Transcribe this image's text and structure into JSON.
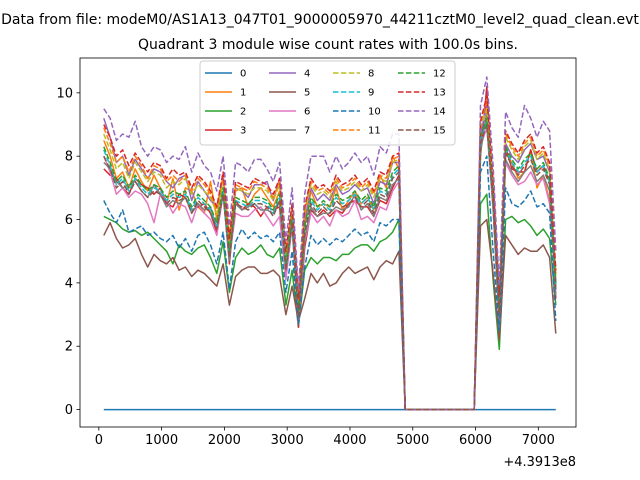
{
  "figure": {
    "suptitle": "Data from file: modeM0/AS1A13_047T01_9000005970_44211cztM0_level2_quad_clean.evt"
  },
  "chart_data": {
    "type": "line",
    "title": "Quadrant 3 module wise count rates with 100.0s bins.",
    "xlabel": "",
    "ylabel": "",
    "x_offset_label": "+4.3913e8",
    "xlim": [
      -300,
      7600
    ],
    "ylim": [
      -0.55,
      11.1
    ],
    "xticks": [
      0,
      1000,
      2000,
      3000,
      4000,
      5000,
      6000,
      7000
    ],
    "yticks": [
      0,
      2,
      4,
      6,
      8,
      10
    ],
    "grid": false,
    "legend_placement": "top-center",
    "legend_columns": 4,
    "x": [
      79,
      179,
      279,
      379,
      479,
      579,
      679,
      779,
      879,
      979,
      1079,
      1179,
      1279,
      1379,
      1479,
      1579,
      1679,
      1779,
      1879,
      1979,
      2079,
      2179,
      2279,
      2379,
      2479,
      2579,
      2679,
      2779,
      2879,
      2979,
      3079,
      3179,
      3279,
      3379,
      3479,
      3579,
      3679,
      3779,
      3879,
      3979,
      4079,
      4179,
      4279,
      4379,
      4479,
      4579,
      4679,
      4779,
      4879,
      4979,
      5979,
      6079,
      6179,
      6279,
      6379,
      6479,
      6579,
      6679,
      6779,
      6879,
      6979,
      7079,
      7179,
      7279
    ],
    "series": [
      {
        "name": "0",
        "color": "#1f77b4",
        "dashed": false,
        "values": [
          0,
          0,
          0,
          0,
          0,
          0,
          0,
          0,
          0,
          0,
          0,
          0,
          0,
          0,
          0,
          0,
          0,
          0,
          0,
          0,
          0,
          0,
          0,
          0,
          0,
          0,
          0,
          0,
          0,
          0,
          0,
          0,
          0,
          0,
          0,
          0,
          0,
          0,
          0,
          0,
          0,
          0,
          0,
          0,
          0,
          0,
          0,
          0,
          0,
          0,
          0,
          0,
          0,
          0,
          0,
          0,
          0,
          0,
          0,
          0,
          0,
          0,
          0,
          0
        ]
      },
      {
        "name": "1",
        "color": "#ff7f0e",
        "dashed": false,
        "values": [
          8.5,
          8.0,
          7.3,
          7.5,
          7.0,
          7.6,
          7.2,
          6.9,
          7.4,
          7.0,
          6.5,
          7.3,
          6.3,
          7.0,
          6.9,
          6.4,
          6.2,
          7.2,
          6.0,
          7.4,
          5.5,
          6.9,
          7.0,
          6.4,
          6.8,
          7.0,
          6.7,
          6.4,
          6.9,
          4.7,
          6.1,
          3.1,
          5.8,
          6.9,
          6.4,
          6.5,
          6.4,
          7.0,
          6.3,
          6.6,
          6.9,
          6.5,
          6.7,
          6.3,
          7.4,
          7.0,
          8.0,
          7.6,
          0.0,
          0.0,
          0.0,
          8.4,
          9.2,
          6.5,
          3.0,
          8.1,
          7.8,
          7.3,
          7.5,
          8.2,
          7.0,
          7.4,
          6.6,
          4.4
        ]
      },
      {
        "name": "2",
        "color": "#2ca02c",
        "dashed": false,
        "values": [
          6.1,
          6.0,
          5.9,
          5.7,
          5.6,
          5.65,
          5.5,
          5.6,
          5.4,
          5.2,
          5.0,
          4.6,
          5.2,
          5.0,
          4.9,
          5.1,
          5.2,
          4.8,
          4.3,
          5.3,
          3.7,
          4.8,
          5.1,
          4.9,
          5.0,
          5.2,
          4.9,
          4.8,
          5.1,
          3.3,
          4.4,
          2.6,
          4.4,
          4.8,
          4.6,
          4.8,
          4.8,
          4.7,
          4.9,
          4.9,
          5.1,
          5.2,
          5.2,
          5.0,
          5.3,
          5.4,
          5.6,
          6.0,
          0.0,
          0.0,
          0.0,
          6.5,
          6.8,
          4.1,
          1.9,
          6.0,
          6.1,
          5.9,
          6.0,
          5.8,
          5.5,
          5.7,
          5.4,
          3.3
        ]
      },
      {
        "name": "3",
        "color": "#d62728",
        "dashed": false,
        "values": [
          7.6,
          7.4,
          7.3,
          7.0,
          6.8,
          7.3,
          7.1,
          7.0,
          6.8,
          7.0,
          6.5,
          6.4,
          6.8,
          6.7,
          6.3,
          6.4,
          6.5,
          6.2,
          5.6,
          6.9,
          4.6,
          6.6,
          6.3,
          6.5,
          6.4,
          6.1,
          6.4,
          6.3,
          6.4,
          4.2,
          5.9,
          2.6,
          5.1,
          6.3,
          6.1,
          6.3,
          6.1,
          6.3,
          6.2,
          6.5,
          6.6,
          6.4,
          6.4,
          6.1,
          6.6,
          6.5,
          7.0,
          7.4,
          0.0,
          0.0,
          0.0,
          8.0,
          10.2,
          6.6,
          2.8,
          8.3,
          7.6,
          7.5,
          7.5,
          8.2,
          7.5,
          7.7,
          7.2,
          3.5
        ]
      },
      {
        "name": "4",
        "color": "#9467bd",
        "dashed": false,
        "values": [
          9.2,
          8.6,
          7.8,
          8.0,
          7.4,
          7.9,
          7.6,
          7.3,
          7.6,
          7.5,
          7.2,
          7.0,
          7.3,
          7.4,
          6.6,
          7.2,
          6.9,
          6.6,
          6.4,
          7.3,
          5.0,
          7.0,
          6.9,
          6.7,
          7.1,
          7.1,
          7.2,
          6.6,
          7.3,
          4.9,
          6.2,
          3.2,
          6.0,
          7.0,
          6.6,
          6.8,
          6.6,
          7.1,
          6.8,
          6.9,
          7.1,
          6.9,
          7.0,
          6.5,
          7.2,
          7.1,
          7.8,
          7.8,
          0.0,
          0.0,
          0.0,
          8.7,
          9.6,
          6.9,
          3.3,
          8.4,
          8.0,
          7.8,
          8.2,
          8.4,
          7.9,
          8.0,
          7.5,
          4.0
        ]
      },
      {
        "name": "5",
        "color": "#8c564b",
        "dashed": false,
        "values": [
          5.5,
          5.9,
          5.4,
          5.1,
          5.2,
          5.4,
          4.9,
          4.5,
          4.9,
          4.7,
          4.6,
          4.8,
          4.4,
          4.5,
          4.2,
          4.4,
          4.3,
          4.1,
          3.9,
          4.6,
          3.3,
          4.2,
          4.4,
          4.5,
          4.5,
          4.3,
          4.3,
          4.4,
          4.2,
          3.0,
          3.9,
          2.8,
          3.5,
          4.3,
          4.0,
          4.3,
          3.9,
          4.0,
          4.3,
          4.5,
          4.3,
          4.4,
          4.5,
          4.1,
          4.5,
          4.7,
          4.6,
          5.0,
          0.0,
          0.0,
          0.0,
          5.8,
          6.0,
          4.3,
          2.2,
          5.5,
          5.2,
          4.9,
          5.1,
          5.0,
          5.0,
          5.2,
          4.8,
          2.4
        ]
      },
      {
        "name": "6",
        "color": "#e377c2",
        "dashed": false,
        "values": [
          8.0,
          7.5,
          6.8,
          7.0,
          6.7,
          6.9,
          6.8,
          6.5,
          5.9,
          6.8,
          6.6,
          6.2,
          6.5,
          6.4,
          5.9,
          6.5,
          6.2,
          6.0,
          5.5,
          6.8,
          4.8,
          6.2,
          6.1,
          6.1,
          6.3,
          6.4,
          6.1,
          5.8,
          6.1,
          4.1,
          5.8,
          2.7,
          5.3,
          6.2,
          5.9,
          6.1,
          5.8,
          6.3,
          6.1,
          6.2,
          6.6,
          6.0,
          6.1,
          5.9,
          6.4,
          6.3,
          6.9,
          7.2,
          0.0,
          0.0,
          0.0,
          8.3,
          8.9,
          6.3,
          2.6,
          7.8,
          7.4,
          7.1,
          7.2,
          7.5,
          7.1,
          7.3,
          6.5,
          3.9
        ]
      },
      {
        "name": "7",
        "color": "#7f7f7f",
        "dashed": false,
        "values": [
          7.8,
          7.6,
          7.2,
          7.0,
          7.1,
          7.2,
          6.9,
          6.7,
          7.1,
          6.8,
          6.4,
          6.6,
          6.5,
          6.7,
          6.2,
          6.5,
          6.3,
          6.4,
          5.7,
          6.8,
          4.7,
          6.5,
          6.3,
          6.4,
          6.5,
          6.3,
          6.3,
          6.2,
          6.6,
          4.4,
          5.8,
          2.9,
          5.4,
          6.4,
          6.1,
          6.2,
          6.2,
          6.4,
          6.3,
          6.4,
          6.8,
          6.3,
          6.5,
          6.1,
          6.7,
          6.6,
          7.1,
          7.3,
          0.0,
          0.0,
          0.0,
          8.1,
          9.4,
          6.4,
          2.7,
          7.9,
          7.5,
          7.2,
          7.5,
          7.7,
          7.2,
          7.4,
          6.9,
          3.6
        ]
      },
      {
        "name": "8",
        "color": "#bcbd22",
        "dashed": true,
        "values": [
          8.7,
          8.2,
          7.6,
          7.8,
          7.3,
          7.8,
          7.5,
          7.2,
          7.5,
          7.4,
          7.0,
          7.2,
          7.1,
          7.3,
          6.8,
          7.1,
          6.9,
          6.7,
          6.2,
          7.2,
          5.2,
          7.0,
          6.9,
          6.8,
          7.0,
          7.0,
          6.9,
          6.6,
          7.1,
          4.8,
          6.3,
          3.3,
          6.2,
          7.1,
          6.8,
          6.9,
          6.7,
          7.2,
          6.9,
          7.0,
          7.2,
          6.9,
          7.1,
          6.7,
          7.3,
          7.2,
          7.8,
          7.9,
          0.0,
          0.0,
          0.0,
          8.9,
          9.5,
          7.0,
          3.4,
          8.6,
          8.2,
          7.9,
          8.3,
          8.5,
          7.9,
          8.1,
          7.6,
          4.2
        ]
      },
      {
        "name": "9",
        "color": "#17becf",
        "dashed": true,
        "values": [
          8.2,
          7.7,
          7.1,
          7.3,
          6.9,
          7.3,
          7.0,
          6.8,
          7.0,
          6.9,
          6.6,
          6.8,
          6.7,
          6.8,
          6.3,
          6.7,
          6.5,
          6.3,
          5.8,
          6.9,
          4.9,
          6.6,
          6.5,
          6.4,
          6.6,
          6.6,
          6.5,
          6.2,
          6.7,
          4.5,
          6.0,
          3.0,
          5.7,
          6.6,
          6.3,
          6.5,
          6.3,
          6.7,
          6.5,
          6.6,
          6.8,
          6.5,
          6.7,
          6.3,
          6.9,
          6.8,
          7.4,
          7.6,
          0.0,
          0.0,
          0.0,
          8.5,
          9.1,
          6.6,
          3.1,
          8.2,
          7.8,
          7.5,
          7.8,
          8.0,
          7.5,
          7.7,
          7.2,
          3.9
        ]
      },
      {
        "name": "10",
        "color": "#1f77b4",
        "dashed": true,
        "values": [
          6.6,
          6.2,
          5.9,
          6.3,
          5.6,
          5.7,
          5.8,
          5.5,
          5.6,
          5.4,
          5.3,
          5.5,
          5.1,
          5.4,
          5.0,
          5.5,
          5.6,
          5.2,
          4.6,
          5.6,
          3.8,
          5.3,
          5.7,
          5.4,
          5.6,
          5.4,
          5.5,
          5.3,
          5.6,
          3.7,
          5.0,
          2.7,
          4.5,
          5.5,
          5.2,
          5.4,
          5.2,
          5.4,
          5.3,
          5.5,
          5.7,
          5.5,
          5.6,
          5.3,
          5.9,
          5.8,
          6.0,
          6.0,
          0.0,
          0.0,
          0.0,
          7.5,
          8.0,
          5.0,
          2.5,
          7.0,
          6.5,
          6.4,
          6.6,
          6.9,
          6.4,
          6.5,
          6.2,
          2.8
        ]
      },
      {
        "name": "11",
        "color": "#ff7f0e",
        "dashed": true,
        "values": [
          8.9,
          8.4,
          7.8,
          8.0,
          7.5,
          8.0,
          7.7,
          7.3,
          7.7,
          7.6,
          7.2,
          7.4,
          7.2,
          7.4,
          6.9,
          7.3,
          7.1,
          6.8,
          6.3,
          7.4,
          5.3,
          7.1,
          7.0,
          6.9,
          7.2,
          7.1,
          7.0,
          6.7,
          7.2,
          4.9,
          6.4,
          3.4,
          6.3,
          7.2,
          6.9,
          7.0,
          6.8,
          7.3,
          7.0,
          7.1,
          7.3,
          7.0,
          7.2,
          6.8,
          7.4,
          7.3,
          7.9,
          8.0,
          0.0,
          0.0,
          0.0,
          9.0,
          9.8,
          7.1,
          3.5,
          8.7,
          8.3,
          8.0,
          8.4,
          8.6,
          8.0,
          8.2,
          7.7,
          4.3
        ]
      },
      {
        "name": "12",
        "color": "#2ca02c",
        "dashed": true,
        "values": [
          8.3,
          7.8,
          7.2,
          7.4,
          7.0,
          7.4,
          7.1,
          6.9,
          7.1,
          7.0,
          6.7,
          6.9,
          6.8,
          6.9,
          6.4,
          6.8,
          6.6,
          6.4,
          5.9,
          7.0,
          5.0,
          6.7,
          6.6,
          6.5,
          6.7,
          6.7,
          6.6,
          6.3,
          6.8,
          4.6,
          6.1,
          3.1,
          5.8,
          6.7,
          6.4,
          6.6,
          6.4,
          6.8,
          6.6,
          6.7,
          6.9,
          6.6,
          6.8,
          6.4,
          7.0,
          6.9,
          7.5,
          7.7,
          0.0,
          0.0,
          0.0,
          8.6,
          9.2,
          6.7,
          3.2,
          8.3,
          7.9,
          7.6,
          7.9,
          8.1,
          7.6,
          7.8,
          7.3,
          4.0
        ]
      },
      {
        "name": "13",
        "color": "#d62728",
        "dashed": true,
        "values": [
          9.0,
          8.6,
          8.0,
          8.2,
          7.7,
          8.1,
          7.8,
          7.5,
          7.8,
          7.7,
          7.3,
          7.6,
          7.4,
          7.5,
          7.0,
          7.4,
          7.2,
          6.9,
          6.4,
          7.5,
          5.4,
          7.2,
          7.1,
          7.0,
          7.3,
          7.2,
          7.1,
          6.8,
          7.3,
          5.0,
          6.5,
          3.5,
          6.4,
          7.3,
          7.0,
          7.1,
          6.9,
          7.4,
          7.1,
          7.2,
          7.4,
          7.1,
          7.3,
          6.9,
          7.5,
          7.4,
          8.0,
          8.1,
          0.0,
          0.0,
          0.0,
          9.1,
          9.9,
          7.2,
          3.6,
          8.8,
          8.4,
          8.1,
          8.5,
          8.7,
          8.1,
          8.3,
          7.8,
          4.4
        ]
      },
      {
        "name": "14",
        "color": "#9467bd",
        "dashed": true,
        "values": [
          9.5,
          9.2,
          8.5,
          8.7,
          8.6,
          9.1,
          8.3,
          8.0,
          8.3,
          8.2,
          7.8,
          8.0,
          7.9,
          8.3,
          7.5,
          8.1,
          7.7,
          7.5,
          6.9,
          8.0,
          5.8,
          7.8,
          7.7,
          7.5,
          7.9,
          7.9,
          7.6,
          7.2,
          7.8,
          5.3,
          7.0,
          3.8,
          6.8,
          8.0,
          8.0,
          8.0,
          7.5,
          8.0,
          7.6,
          7.8,
          8.1,
          7.8,
          8.0,
          7.4,
          8.3,
          8.1,
          8.7,
          8.7,
          0.0,
          0.0,
          0.0,
          9.6,
          10.5,
          7.7,
          3.9,
          9.4,
          8.9,
          8.6,
          9.6,
          9.2,
          8.6,
          9.1,
          8.8,
          5.0
        ]
      },
      {
        "name": "15",
        "color": "#8c564b",
        "dashed": true,
        "values": [
          8.0,
          7.6,
          7.0,
          7.2,
          6.8,
          7.2,
          6.9,
          6.7,
          6.9,
          6.8,
          6.5,
          6.7,
          6.6,
          6.7,
          6.2,
          6.6,
          6.4,
          6.2,
          5.7,
          6.8,
          4.8,
          6.5,
          6.4,
          6.3,
          6.5,
          6.5,
          6.4,
          6.1,
          6.6,
          4.4,
          5.9,
          2.9,
          5.6,
          6.5,
          6.2,
          6.4,
          6.2,
          6.6,
          6.4,
          6.5,
          6.7,
          6.4,
          6.6,
          6.2,
          6.8,
          6.7,
          7.3,
          7.5,
          0.0,
          0.0,
          0.0,
          8.4,
          9.0,
          6.5,
          3.0,
          8.1,
          7.7,
          7.4,
          7.7,
          7.9,
          7.4,
          7.6,
          7.1,
          3.8
        ]
      }
    ]
  }
}
